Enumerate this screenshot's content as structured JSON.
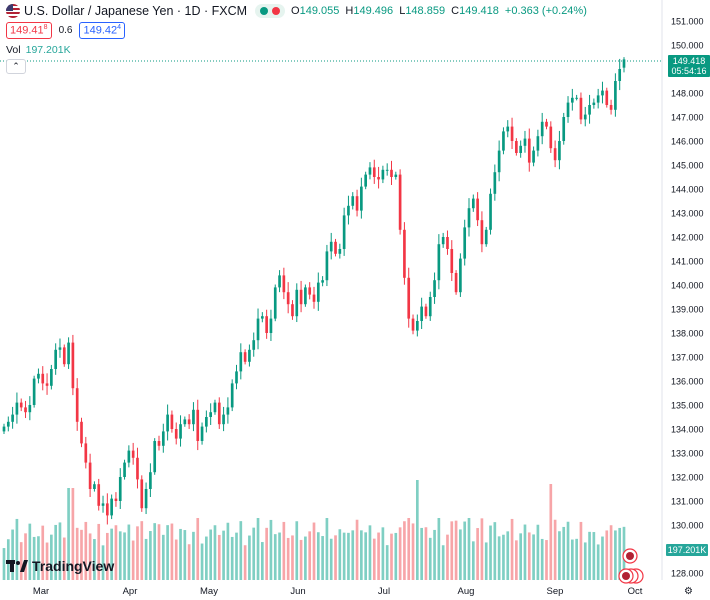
{
  "header": {
    "symbol": "U.S. Dollar / Japanese Yen · 1D · FXCM",
    "open_label": "O",
    "open": "149.055",
    "high_label": "H",
    "high": "149.496",
    "low_label": "L",
    "low": "148.859",
    "close_label": "C",
    "close": "149.418",
    "change": "+0.363 (+0.24%)"
  },
  "trade": {
    "sell": "149.41",
    "sell_sup": "8",
    "spread": "0.6",
    "buy": "149.42",
    "buy_sup": "4"
  },
  "volume_legend": {
    "label": "Vol",
    "value": "197.201K"
  },
  "last_price": {
    "price": "149.418",
    "countdown": "05:54:16"
  },
  "volume_tag": "197.201K",
  "brand": "TradingView",
  "colors": {
    "up": "#089981",
    "down": "#f23645",
    "vol_up": "#7fcfc3",
    "vol_down": "#f7a5a8"
  },
  "chart_data": {
    "type": "candlestick",
    "title": "U.S. Dollar / Japanese Yen · 1D · FXCM",
    "y_axis": {
      "ticks": [
        "151.000",
        "150.000",
        "149.000",
        "148.000",
        "147.000",
        "146.000",
        "145.000",
        "144.000",
        "143.000",
        "142.000",
        "141.000",
        "140.000",
        "139.000",
        "138.000",
        "137.000",
        "136.000",
        "135.000",
        "134.000",
        "133.000",
        "132.000",
        "131.000",
        "130.000",
        "129.000",
        "128.000"
      ],
      "ylim": [
        127.8,
        151.2
      ]
    },
    "x_axis": {
      "labels": [
        "Mar",
        "Apr",
        "May",
        "Jun",
        "Jul",
        "Aug",
        "Sep",
        "Oct"
      ]
    },
    "closes": [
      134.1,
      134.3,
      134.6,
      135.1,
      134.9,
      134.7,
      135.0,
      136.1,
      136.3,
      135.9,
      135.8,
      136.5,
      137.3,
      137.4,
      136.7,
      137.6,
      135.7,
      134.3,
      133.4,
      132.6,
      131.5,
      131.7,
      130.8,
      130.9,
      130.4,
      131.1,
      131.0,
      132.0,
      132.6,
      133.1,
      132.8,
      131.9,
      130.7,
      131.5,
      132.2,
      133.5,
      133.3,
      133.9,
      134.6,
      134.0,
      133.6,
      134.2,
      134.4,
      134.2,
      134.8,
      133.5,
      134.1,
      134.5,
      134.7,
      135.1,
      134.2,
      134.6,
      134.9,
      135.9,
      136.4,
      137.2,
      136.8,
      137.3,
      137.7,
      138.6,
      138.7,
      138.0,
      138.6,
      139.9,
      140.4,
      139.7,
      139.2,
      138.7,
      139.8,
      139.2,
      139.9,
      139.6,
      139.3,
      140.1,
      140.2,
      141.4,
      141.8,
      141.3,
      141.5,
      142.9,
      143.3,
      143.7,
      143.1,
      144.1,
      144.6,
      144.9,
      144.5,
      144.4,
      144.8,
      144.8,
      144.5,
      144.6,
      142.3,
      140.3,
      138.6,
      138.1,
      138.5,
      139.1,
      138.7,
      139.5,
      140.2,
      141.7,
      142.0,
      141.5,
      140.5,
      139.7,
      141.1,
      142.4,
      143.2,
      143.6,
      142.7,
      141.7,
      142.3,
      143.8,
      144.7,
      145.6,
      146.4,
      146.6,
      146.0,
      145.5,
      145.8,
      146.1,
      145.1,
      145.6,
      146.2,
      146.8,
      146.6,
      145.7,
      145.2,
      146.0,
      147.0,
      147.6,
      147.8,
      147.8,
      146.9,
      147.1,
      147.5,
      147.6,
      147.9,
      148.1,
      147.5,
      147.3,
      148.5,
      149.0,
      149.4
    ]
  }
}
